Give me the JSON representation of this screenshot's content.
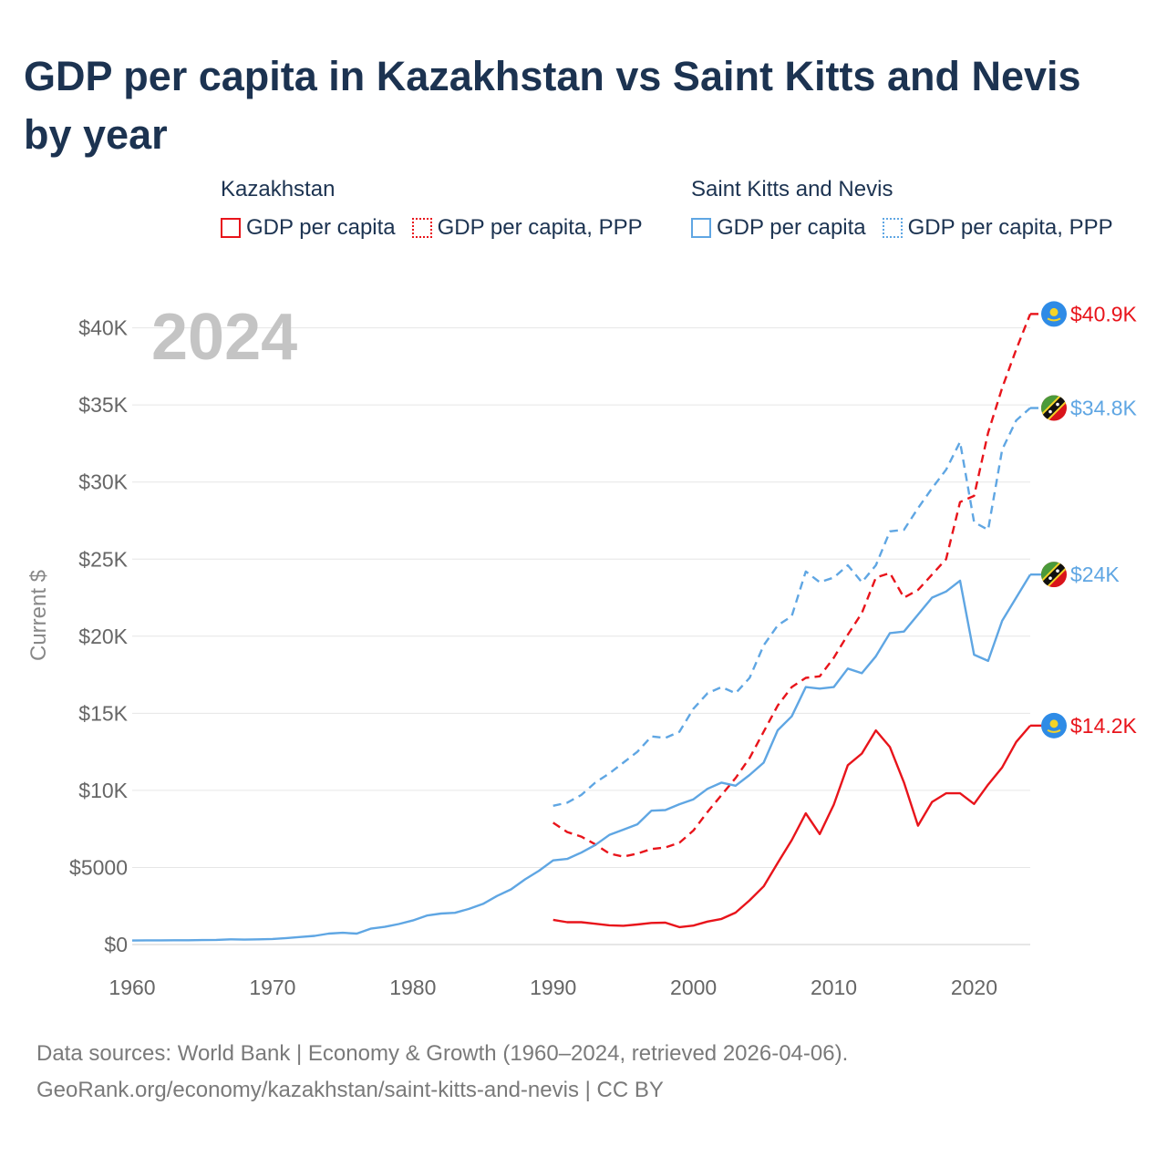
{
  "title": "GDP per capita in Kazakhstan vs Saint Kitts and Nevis by year",
  "legend": {
    "kazakhstan": {
      "country": "Kazakhstan",
      "solid_label": "GDP per capita",
      "dashed_label": "GDP per capita, PPP"
    },
    "saint_kitts": {
      "country": "Saint Kitts and Nevis",
      "solid_label": "GDP per capita",
      "dashed_label": "GDP per capita, PPP"
    }
  },
  "colors": {
    "kazakhstan": "#e8141b",
    "saint_kitts": "#5fa6e3",
    "title": "#1c3351",
    "axis_text": "#666666",
    "grid": "#e6e6e6",
    "year_watermark": "#c4c4c4"
  },
  "source": {
    "line1": "Data sources: World Bank | Economy & Growth (1960–2024, retrieved 2026-04-06).",
    "line2": "GeoRank.org/economy/kazakhstan/saint-kitts-and-nevis | CC BY"
  },
  "chart_data": {
    "type": "line",
    "year_label": "2024",
    "ylabel": "Current $",
    "xlim": [
      1960,
      2024
    ],
    "ylim": [
      0,
      42000
    ],
    "x_ticks": [
      1960,
      1970,
      1980,
      1990,
      2000,
      2010,
      2020
    ],
    "y_ticks": [
      {
        "value": 0,
        "label": "$0"
      },
      {
        "value": 5000,
        "label": "$5000"
      },
      {
        "value": 10000,
        "label": "$10K"
      },
      {
        "value": 15000,
        "label": "$15K"
      },
      {
        "value": 20000,
        "label": "$20K"
      },
      {
        "value": 25000,
        "label": "$25K"
      },
      {
        "value": 30000,
        "label": "$30K"
      },
      {
        "value": 35000,
        "label": "$35K"
      },
      {
        "value": 40000,
        "label": "$40K"
      }
    ],
    "series": [
      {
        "name": "Kazakhstan GDP per capita",
        "country": "kazakhstan",
        "style": "solid",
        "end_label": "$14.2K",
        "start_year": 1990,
        "values": [
          1600,
          1450,
          1450,
          1350,
          1250,
          1220,
          1300,
          1400,
          1420,
          1130,
          1230,
          1490,
          1660,
          2070,
          2870,
          3770,
          5290,
          6770,
          8510,
          7170,
          9070,
          11630,
          12390,
          13890,
          12810,
          10510,
          7710,
          9250,
          9810,
          9810,
          9120,
          10370,
          11490,
          13140,
          14200
        ]
      },
      {
        "name": "Kazakhstan GDP per capita, PPP",
        "country": "kazakhstan",
        "style": "dashed",
        "end_label": "$40.9K",
        "start_year": 1990,
        "values": [
          7900,
          7300,
          7000,
          6500,
          5900,
          5700,
          5900,
          6200,
          6300,
          6600,
          7400,
          8600,
          9700,
          10800,
          12100,
          13800,
          15500,
          16700,
          17300,
          17400,
          18600,
          20100,
          21500,
          23800,
          24100,
          22500,
          23000,
          24000,
          25000,
          28700,
          29100,
          33200,
          36100,
          38600,
          40900
        ]
      },
      {
        "name": "Saint Kitts and Nevis GDP per capita",
        "country": "saint_kitts",
        "style": "solid",
        "end_label": "$24K",
        "start_year": 1960,
        "values": [
          260,
          270,
          270,
          280,
          280,
          290,
          300,
          340,
          320,
          340,
          360,
          420,
          490,
          560,
          710,
          760,
          710,
          1030,
          1150,
          1330,
          1560,
          1880,
          2010,
          2060,
          2310,
          2640,
          3150,
          3580,
          4230,
          4790,
          5460,
          5550,
          5960,
          6460,
          7110,
          7450,
          7800,
          8680,
          8720,
          9100,
          9420,
          10100,
          10500,
          10300,
          11000,
          11800,
          13900,
          14800,
          16700,
          16600,
          16700,
          17900,
          17600,
          18700,
          20200,
          20300,
          21400,
          22500,
          22900,
          23600,
          18800,
          18400,
          21000,
          22500,
          24000
        ]
      },
      {
        "name": "Saint Kitts and Nevis GDP per capita, PPP",
        "country": "saint_kitts",
        "style": "dashed",
        "end_label": "$34.8K",
        "start_year": 1990,
        "values": [
          9000,
          9200,
          9700,
          10500,
          11100,
          11800,
          12500,
          13500,
          13400,
          13800,
          15300,
          16300,
          16700,
          16300,
          17300,
          19400,
          20700,
          21300,
          24200,
          23500,
          23800,
          24600,
          23500,
          24600,
          26800,
          26900,
          28300,
          29600,
          30800,
          32600,
          27400,
          26900,
          32100,
          34000,
          34800
        ]
      }
    ]
  }
}
